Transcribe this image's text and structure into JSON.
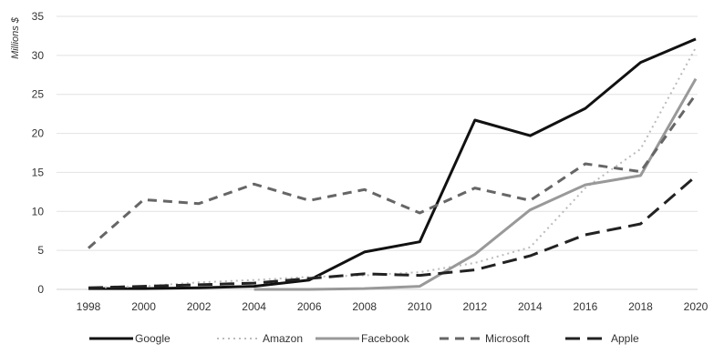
{
  "chart_data": {
    "type": "line",
    "title": "",
    "xlabel": "",
    "ylabel": "Millions $",
    "ylim": [
      0,
      35
    ],
    "yticks": [
      0,
      5,
      10,
      15,
      20,
      25,
      30,
      35
    ],
    "categories": [
      "1998",
      "2000",
      "2002",
      "2004",
      "2006",
      "2008",
      "2010",
      "2012",
      "2014",
      "2016",
      "2018",
      "2020"
    ],
    "grid": "horizontal",
    "legend_position": "bottom",
    "series": [
      {
        "name": "Google",
        "style": "solid",
        "color": "#111111",
        "width": 3,
        "values": [
          0.1,
          0.1,
          0.2,
          0.4,
          1.2,
          4.8,
          6.1,
          21.7,
          19.7,
          23.2,
          29.1,
          32.1
        ]
      },
      {
        "name": "Amazon",
        "style": "dotted",
        "color": "#bbbbbb",
        "width": 2,
        "values": [
          0.2,
          0.4,
          0.9,
          1.2,
          1.6,
          1.8,
          2.2,
          3.4,
          5.4,
          13.0,
          18.0,
          31.0
        ]
      },
      {
        "name": "Facebook",
        "style": "solid",
        "color": "#999999",
        "width": 3,
        "values": [
          null,
          null,
          null,
          0.0,
          0.0,
          0.1,
          0.4,
          4.5,
          10.2,
          13.4,
          14.6,
          27.0
        ]
      },
      {
        "name": "Microsoft",
        "style": "dashed",
        "color": "#666666",
        "width": 3,
        "values": [
          5.3,
          11.5,
          11.0,
          13.5,
          11.4,
          12.8,
          9.8,
          13.0,
          11.4,
          16.1,
          15.1,
          25.0
        ]
      },
      {
        "name": "Apple",
        "style": "dashed-long",
        "color": "#222222",
        "width": 3,
        "values": [
          0.2,
          0.4,
          0.6,
          0.8,
          1.4,
          2.0,
          1.8,
          2.5,
          4.3,
          7.0,
          8.4,
          14.5
        ]
      }
    ]
  }
}
